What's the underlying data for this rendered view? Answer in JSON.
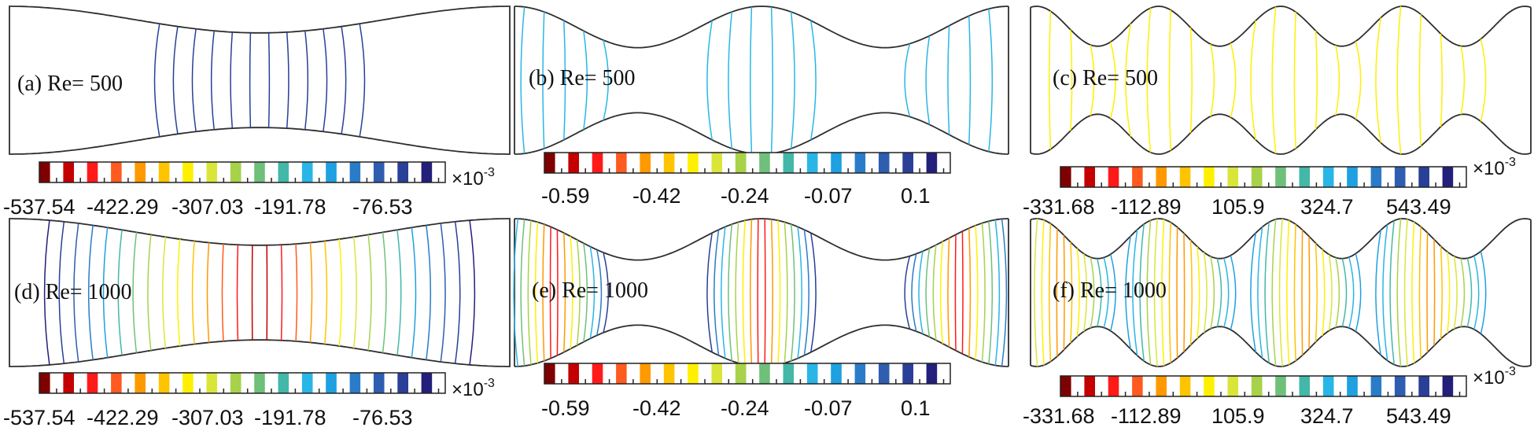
{
  "panels": [
    {
      "id": "a",
      "label": "(a) Re= 500",
      "geometry": "single-constriction",
      "field_set": 0,
      "intensity": "low"
    },
    {
      "id": "b",
      "label": "(b) Re= 500",
      "geometry": "double-wavy",
      "field_set": 1,
      "intensity": "low"
    },
    {
      "id": "c",
      "label": "(c) Re= 500",
      "geometry": "triple-wavy",
      "field_set": 2,
      "intensity": "low"
    },
    {
      "id": "d",
      "label": "(d) Re= 1000",
      "geometry": "single-constriction",
      "field_set": 0,
      "intensity": "high"
    },
    {
      "id": "e",
      "label": "(e) Re= 1000",
      "geometry": "double-wavy",
      "field_set": 1,
      "intensity": "high"
    },
    {
      "id": "f",
      "label": "(f) Re= 1000",
      "geometry": "triple-wavy",
      "field_set": 2,
      "intensity": "high"
    }
  ],
  "colorbars": [
    {
      "ticks": [
        "-537.54",
        "-422.29",
        "-307.03",
        "-191.78",
        "-76.53"
      ],
      "multiplier_base": "×10",
      "multiplier_exp": "-3"
    },
    {
      "ticks": [
        "-0.59",
        "-0.42",
        "-0.24",
        "-0.07",
        "0.1"
      ],
      "multiplier_base": "",
      "multiplier_exp": ""
    },
    {
      "ticks": [
        "-331.68",
        "-112.89",
        "105.9",
        "324.7",
        "543.49"
      ],
      "multiplier_base": "×10",
      "multiplier_exp": "-3"
    }
  ],
  "colors": {
    "colormap": [
      "#7f0000",
      "#c40000",
      "#ff1a1a",
      "#ff5a1f",
      "#ff9900",
      "#ffc400",
      "#fff000",
      "#d9e639",
      "#a8d24a",
      "#6fc07a",
      "#43b8a8",
      "#29b6e6",
      "#1fa0e0",
      "#2a7cc8",
      "#2f5db0",
      "#2a3f98",
      "#231f7a"
    ],
    "wall": "#2e2e2e"
  }
}
